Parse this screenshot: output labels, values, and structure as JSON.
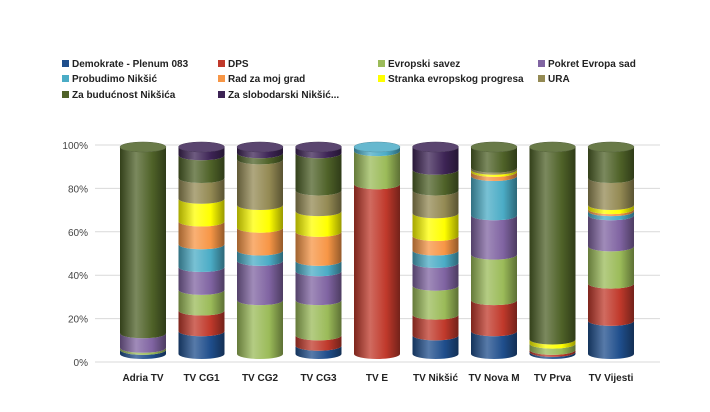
{
  "chart_data": {
    "type": "bar",
    "stacked": true,
    "percent": true,
    "style": "3d-cylinder",
    "title": "",
    "xlabel": "",
    "ylabel": "",
    "ylim": [
      0,
      100
    ],
    "grid": true,
    "legend_position": "top",
    "y_ticks": [
      "0%",
      "20%",
      "40%",
      "60%",
      "80%",
      "100%"
    ],
    "categories": [
      "Adria TV",
      "TV CG1",
      "TV CG2",
      "TV CG3",
      "TV E",
      "TV Nikšić",
      "TV Nova M",
      "TV Prva",
      "TV Vijesti"
    ],
    "series": [
      {
        "name": "Demokrate - Plenum 083",
        "color": "#1f4e8c",
        "values": [
          2,
          11,
          0,
          4,
          0,
          9,
          11,
          1,
          16
        ]
      },
      {
        "name": "DPS",
        "color": "#c0392b",
        "values": [
          0,
          10,
          0,
          5,
          82,
          10,
          15,
          1,
          18
        ]
      },
      {
        "name": "Evropski savez",
        "color": "#9bbb59",
        "values": [
          1,
          10,
          26,
          17,
          16,
          14,
          22,
          3,
          18
        ]
      },
      {
        "name": "Pokret Evropa sad",
        "color": "#8064a2",
        "values": [
          7,
          11,
          19,
          14,
          0,
          11,
          19,
          0,
          15
        ]
      },
      {
        "name": "Probudimo Nikšić",
        "color": "#4bacc6",
        "values": [
          0,
          11,
          5,
          5,
          2,
          6,
          19,
          0,
          2
        ]
      },
      {
        "name": "Rad za moj grad",
        "color": "#f79646",
        "values": [
          0,
          11,
          11,
          14,
          0,
          7,
          2,
          0,
          1
        ]
      },
      {
        "name": "Stranka evropskog progresa",
        "color": "#ffff00",
        "values": [
          0,
          11,
          11,
          10,
          0,
          11,
          1,
          2,
          2
        ]
      },
      {
        "name": "URA",
        "color": "#948a54",
        "values": [
          0,
          10,
          22,
          10,
          0,
          11,
          1,
          0,
          13
        ]
      },
      {
        "name": "Za budućnost Nikšića",
        "color": "#4f6228",
        "values": [
          90,
          11,
          3,
          18,
          0,
          10,
          10,
          93,
          15
        ]
      },
      {
        "name": "Za slobodarski Nikšić...",
        "color": "#3d2455",
        "values": [
          0,
          4,
          3,
          3,
          0,
          11,
          0,
          0,
          0
        ]
      }
    ]
  }
}
